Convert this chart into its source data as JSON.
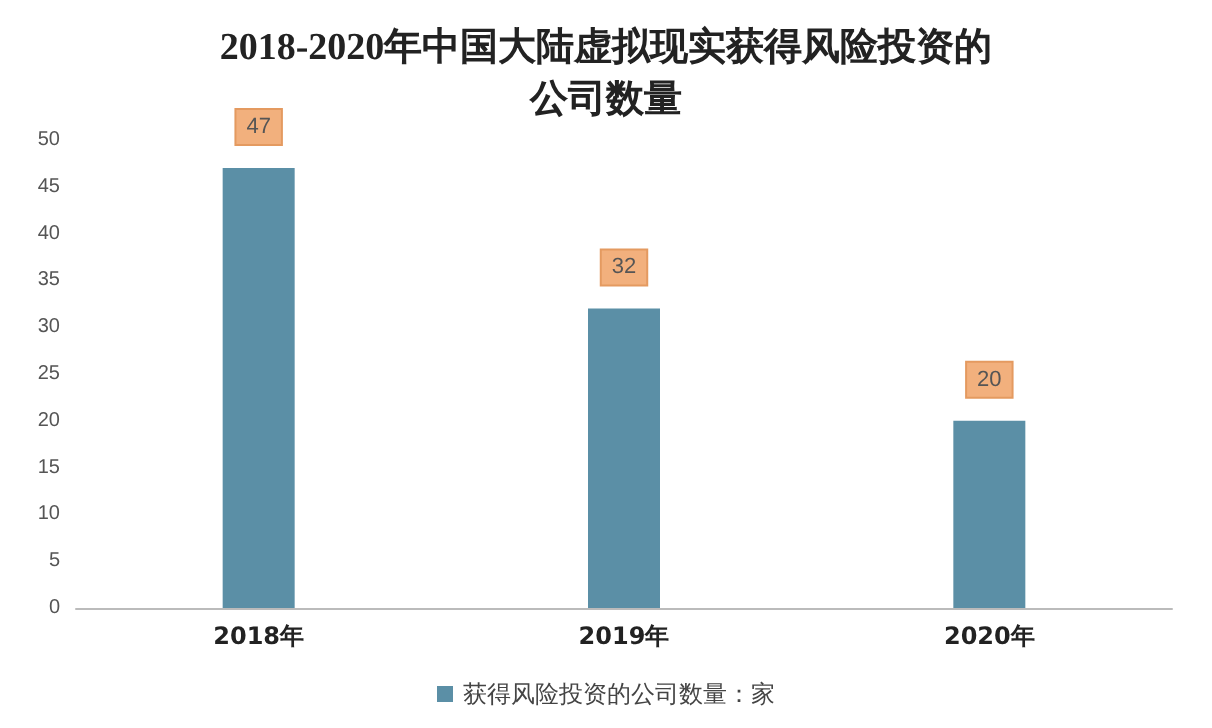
{
  "chart_data": {
    "type": "bar",
    "title": "2018-2020年中国大陆虚拟现实获得风险投资的公司数量",
    "categories": [
      "2018年",
      "2019年",
      "2020年"
    ],
    "series": [
      {
        "name": "获得风险投资的公司数量：家",
        "color": "#5b8fa6",
        "values": [
          47,
          32,
          20
        ]
      }
    ],
    "ylim": [
      0,
      50
    ],
    "yticks": [
      0,
      5,
      10,
      15,
      20,
      25,
      30,
      35,
      40,
      45,
      50
    ],
    "grid": false,
    "legend": "bottom",
    "data_labels": true
  }
}
